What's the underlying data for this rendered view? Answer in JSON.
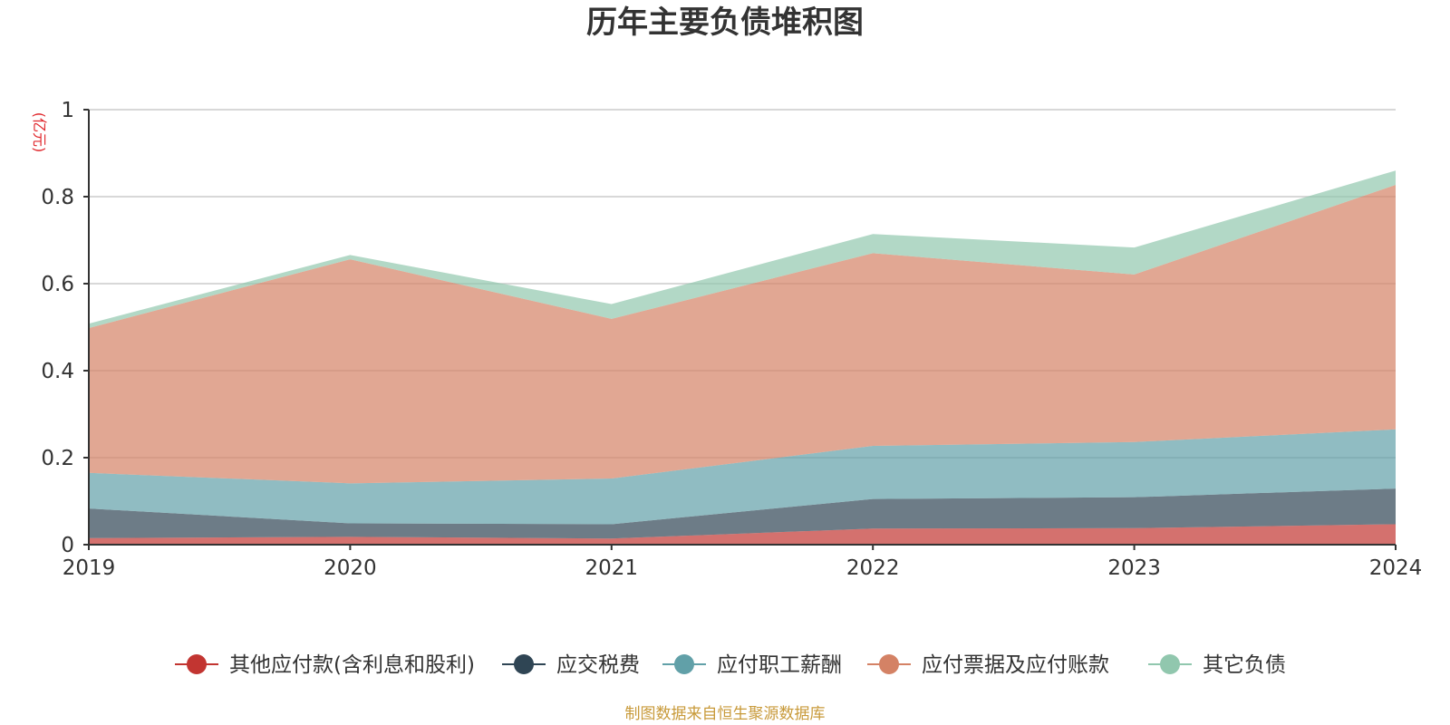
{
  "chart_data": {
    "type": "area",
    "stacked": true,
    "title": "历年主要负债堆积图",
    "unit_label": "(亿元)",
    "x": [
      "2019",
      "2020",
      "2021",
      "2022",
      "2023",
      "2024"
    ],
    "ylim": [
      0,
      1
    ],
    "yticks": [
      "0",
      "0.2",
      "0.4",
      "0.6",
      "0.8",
      "1"
    ],
    "grid": true,
    "legend_position": "bottom",
    "series": [
      {
        "name": "其他应付款(含利息和股利)",
        "color": "#c23531",
        "values": [
          0.015,
          0.018,
          0.014,
          0.037,
          0.038,
          0.047
        ]
      },
      {
        "name": "应交税费",
        "color": "#2f4554",
        "values": [
          0.068,
          0.031,
          0.033,
          0.068,
          0.071,
          0.082
        ]
      },
      {
        "name": "应付职工薪酬",
        "color": "#61a0a8",
        "values": [
          0.082,
          0.092,
          0.105,
          0.122,
          0.127,
          0.136
        ]
      },
      {
        "name": "应付票据及应付账款",
        "color": "#d48265",
        "values": [
          0.333,
          0.515,
          0.367,
          0.443,
          0.385,
          0.562
        ]
      },
      {
        "name": "其它负债",
        "color": "#91c7ae",
        "values": [
          0.01,
          0.01,
          0.034,
          0.044,
          0.062,
          0.033
        ]
      }
    ]
  },
  "source_note": "制图数据来自恒生聚源数据库"
}
